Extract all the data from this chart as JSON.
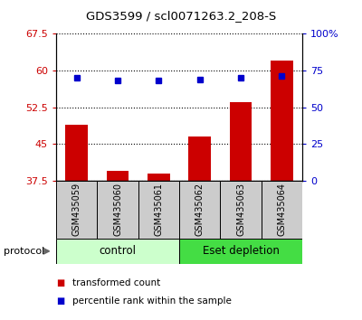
{
  "title": "GDS3599 / scl0071263.2_208-S",
  "categories": [
    "GSM435059",
    "GSM435060",
    "GSM435061",
    "GSM435062",
    "GSM435063",
    "GSM435064"
  ],
  "bar_values": [
    49.0,
    39.5,
    39.0,
    46.5,
    53.5,
    62.0
  ],
  "percentile_values": [
    70.0,
    68.0,
    68.0,
    69.0,
    70.0,
    71.0
  ],
  "bar_color": "#cc0000",
  "percentile_color": "#0000cc",
  "ylim_left": [
    37.5,
    67.5
  ],
  "ylim_right": [
    0,
    100
  ],
  "yticks_left": [
    37.5,
    45.0,
    52.5,
    60.0,
    67.5
  ],
  "ytick_labels_left": [
    "37.5",
    "45",
    "52.5",
    "60",
    "67.5"
  ],
  "yticks_right": [
    0,
    25,
    50,
    75,
    100
  ],
  "ytick_labels_right": [
    "0",
    "25",
    "50",
    "75",
    "100%"
  ],
  "group_control_indices": [
    0,
    1,
    2
  ],
  "group_eset_indices": [
    3,
    4,
    5
  ],
  "group_control_label": "control",
  "group_eset_label": "Eset depletion",
  "group_control_color": "#ccffcc",
  "group_eset_color": "#44dd44",
  "protocol_label": "protocol",
  "legend_bar_label": "transformed count",
  "legend_percentile_label": "percentile rank within the sample",
  "background_color": "#ffffff",
  "xlabel_area_color": "#cccccc",
  "grid_color": "#000000"
}
